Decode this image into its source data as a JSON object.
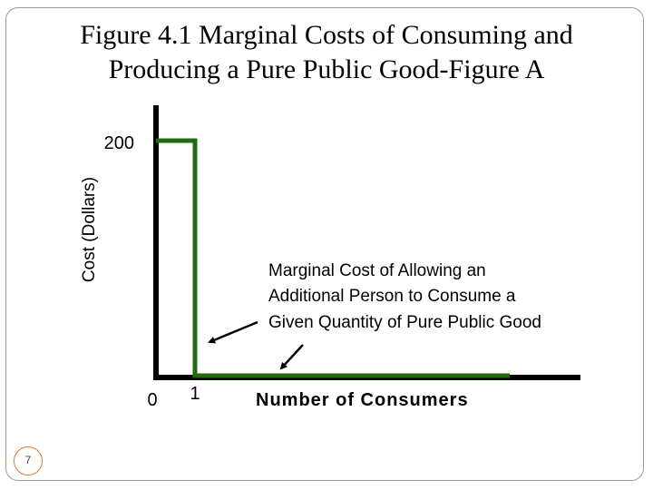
{
  "slide": {
    "title_line1": "Figure 4.1 Marginal Costs of Consuming and",
    "title_line2": "Producing a Pure Public Good-Figure A",
    "slide_number": "7"
  },
  "chart_data": {
    "type": "line",
    "title": "Figure 4.1 Marginal Costs of Consuming and Producing a Pure Public Good-Figure A",
    "xlabel": "Number of Consumers",
    "ylabel": "Cost (Dollars)",
    "y_tick_labels": [
      "200"
    ],
    "x_tick_labels": [
      "0",
      "1"
    ],
    "series": [
      {
        "color": "#1e6b12",
        "points": [
          [
            0,
            200
          ],
          [
            1,
            200
          ],
          [
            1,
            0
          ],
          [
            9,
            0
          ]
        ]
      }
    ],
    "annotation": {
      "lines": [
        "Marginal Cost of Allowing an",
        "Additional Person to Consume a",
        "Given Quantity of Pure Public Good"
      ]
    },
    "axis_color": "#000000"
  }
}
